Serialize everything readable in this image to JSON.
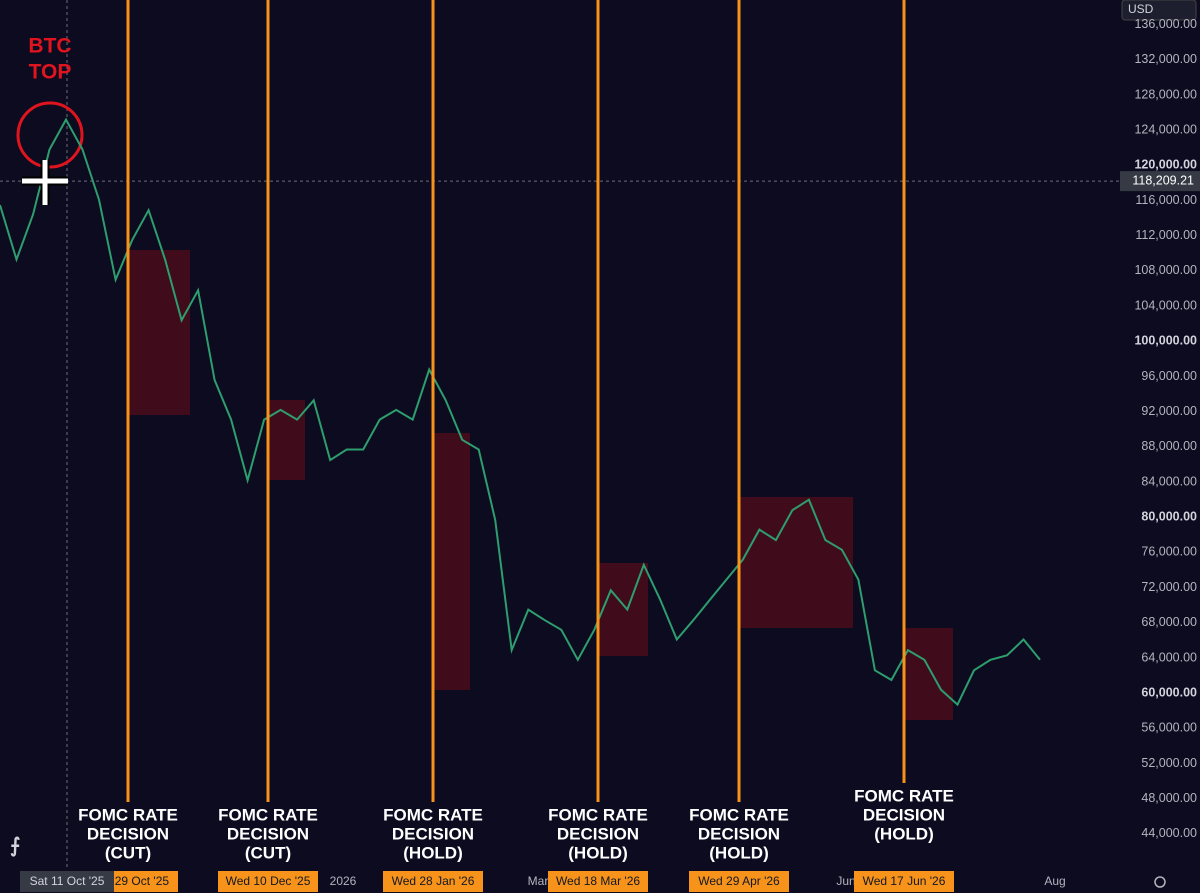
{
  "toolbar": {
    "currency": "USD"
  },
  "annotation": {
    "lines": [
      "BTC",
      "TOP"
    ]
  },
  "price_axis": {
    "ylim": [
      39900,
      138800
    ],
    "ticks": [
      {
        "value": 136000,
        "label": "136,000.00"
      },
      {
        "value": 132000,
        "label": "132,000.00"
      },
      {
        "value": 128000,
        "label": "128,000.00"
      },
      {
        "value": 124000,
        "label": "124,000.00"
      },
      {
        "value": 120000,
        "label": "120,000.00"
      },
      {
        "value": 116000,
        "label": "116,000.00"
      },
      {
        "value": 112000,
        "label": "112,000.00"
      },
      {
        "value": 108000,
        "label": "108,000.00"
      },
      {
        "value": 104000,
        "label": "104,000.00"
      },
      {
        "value": 100000,
        "label": "100,000.00"
      },
      {
        "value": 96000,
        "label": "96,000.00"
      },
      {
        "value": 92000,
        "label": "92,000.00"
      },
      {
        "value": 88000,
        "label": "88,000.00"
      },
      {
        "value": 84000,
        "label": "84,000.00"
      },
      {
        "value": 80000,
        "label": "80,000.00"
      },
      {
        "value": 76000,
        "label": "76,000.00"
      },
      {
        "value": 72000,
        "label": "72,000.00"
      },
      {
        "value": 68000,
        "label": "68,000.00"
      },
      {
        "value": 64000,
        "label": "64,000.00"
      },
      {
        "value": 60000,
        "label": "60,000.00"
      },
      {
        "value": 56000,
        "label": "56,000.00"
      },
      {
        "value": 52000,
        "label": "52,000.00"
      },
      {
        "value": 48000,
        "label": "48,000.00"
      },
      {
        "value": 44000,
        "label": "44,000.00"
      }
    ],
    "current_price": {
      "value": 118209.21,
      "label": "118,209.21"
    }
  },
  "time_axis": {
    "labels": [
      "2026",
      "Mar",
      "Jun",
      "Aug"
    ],
    "crosshair_date": "Sat 11 Oct '25"
  },
  "events": [
    {
      "label": [
        "FOMC RATE",
        "DECISION",
        "(CUT)"
      ],
      "date": "Wed 29 Oct '25"
    },
    {
      "label": [
        "FOMC RATE",
        "DECISION",
        "(CUT)"
      ],
      "date": "Wed 10 Dec '25"
    },
    {
      "label": [
        "FOMC RATE",
        "DECISION",
        "(HOLD)"
      ],
      "date": "Wed 28 Jan '26"
    },
    {
      "label": [
        "FOMC RATE",
        "DECISION",
        "(HOLD)"
      ],
      "date": "Wed 18 Mar '26"
    },
    {
      "label": [
        "FOMC RATE",
        "DECISION",
        "(HOLD)"
      ],
      "date": "Wed 29 Apr '26"
    },
    {
      "label": [
        "FOMC RATE",
        "DECISION",
        "(HOLD)"
      ],
      "date": "Wed 17 Jun '26"
    }
  ],
  "price_path": {
    "values": [
      115500,
      109300,
      114400,
      121800,
      125200,
      121800,
      116100,
      107000,
      111500,
      114900,
      109300,
      102400,
      105800,
      95600,
      91100,
      84200,
      91100,
      92200,
      91100,
      93300,
      86500,
      87700,
      87700,
      91100,
      92200,
      91100,
      96800,
      93300,
      88800,
      87700,
      79700,
      64900,
      69500,
      68300,
      67200,
      63800,
      67200,
      71700,
      69500,
      74600,
      70600,
      66100,
      68300,
      70600,
      72900,
      75200,
      78600,
      77400,
      80800,
      82000,
      77400,
      76300,
      72900,
      62600,
      61500,
      64900,
      63800,
      60400,
      58700,
      62600,
      63800,
      64300,
      66100,
      63800
    ]
  }
}
